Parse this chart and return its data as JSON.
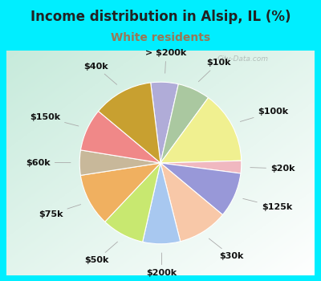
{
  "title": "Income distribution in Alsip, IL (%)",
  "subtitle": "White residents",
  "watermark": "City-Data.com",
  "background_cyan": "#00EEFF",
  "title_color": "#222222",
  "subtitle_color": "#997755",
  "slices": [
    {
      "label": "> $200k",
      "value": 5.5,
      "color": "#b0acd8"
    },
    {
      "label": "$10k",
      "value": 6.5,
      "color": "#aac8a0"
    },
    {
      "label": "$100k",
      "value": 14.5,
      "color": "#f0f090"
    },
    {
      "label": "$20k",
      "value": 2.5,
      "color": "#f0b8c0"
    },
    {
      "label": "$125k",
      "value": 9.0,
      "color": "#9898d8"
    },
    {
      "label": "$30k",
      "value": 10.0,
      "color": "#f8c8a8"
    },
    {
      "label": "$200k",
      "value": 7.5,
      "color": "#a8c8f0"
    },
    {
      "label": "$50k",
      "value": 8.5,
      "color": "#c8e870"
    },
    {
      "label": "$75k",
      "value": 10.5,
      "color": "#f0b060"
    },
    {
      "label": "$60k",
      "value": 5.0,
      "color": "#c8b89a"
    },
    {
      "label": "$150k",
      "value": 8.5,
      "color": "#f08888"
    },
    {
      "label": "$40k",
      "value": 12.0,
      "color": "#c8a030"
    }
  ],
  "title_fontsize": 12,
  "subtitle_fontsize": 10,
  "label_fontsize": 8,
  "figsize": [
    4.0,
    3.5
  ],
  "dpi": 100
}
